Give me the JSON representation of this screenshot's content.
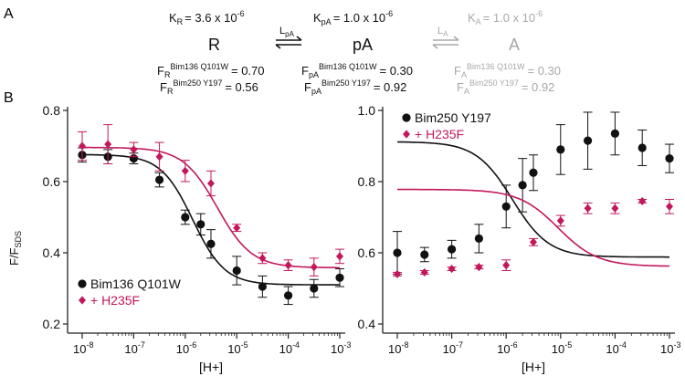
{
  "panel_labels": {
    "a": "A",
    "b": "B"
  },
  "scheme": {
    "states": [
      {
        "name": "R",
        "k_label": "K",
        "k_sub": "R",
        "k_value": "= 3.6 x 10",
        "k_exp": "-6",
        "f_rows": [
          {
            "f": "F",
            "sub": "R",
            "sup": "Bim136 Q101W",
            "value": "= 0.70"
          },
          {
            "f": "F",
            "sub": "R",
            "sup": "Bim250 Y197",
            "value": "= 0.56"
          }
        ]
      },
      {
        "name": "pA",
        "k_label": "K",
        "k_sub": "pA",
        "k_value": "= 1.0 x 10",
        "k_exp": "-6",
        "f_rows": [
          {
            "f": "F",
            "sub": "pA",
            "sup": "Bim136 Q101W",
            "value": "= 0.30"
          },
          {
            "f": "F",
            "sub": "pA",
            "sup": "Bim250 Y197",
            "value": "= 0.92"
          }
        ]
      },
      {
        "name": "A",
        "k_label": "K",
        "k_sub": "A",
        "k_value": "= 1.0 x 10",
        "k_exp": "-6",
        "f_rows": [
          {
            "f": "F",
            "sub": "A",
            "sup": "Bim136 Q101W",
            "value": "= 0.30"
          },
          {
            "f": "F",
            "sub": "A",
            "sup": "Bim250 Y197",
            "value": "= 0.92"
          }
        ]
      }
    ],
    "transitions": [
      {
        "label": "L",
        "sub": "pA"
      },
      {
        "label": "L",
        "sub": "A"
      }
    ],
    "colors": {
      "active": "#111111",
      "faded": "#a8a8a8"
    }
  },
  "colors": {
    "black_series": "#111111",
    "magenta_series": "#c2185b",
    "axis": "#222222"
  },
  "chart_data": [
    {
      "type": "scatter",
      "x_scale": "log",
      "xlim": [
        1e-08,
        0.001
      ],
      "ylim": [
        0.2,
        0.8
      ],
      "xlabel": "[H+]",
      "ylabel": "F/F",
      "ylabel_sub": "SDS",
      "x_ticks": [
        {
          "base": "10",
          "exp": "-8"
        },
        {
          "base": "10",
          "exp": "-7"
        },
        {
          "base": "10",
          "exp": "-6"
        },
        {
          "base": "10",
          "exp": "-5"
        },
        {
          "base": "10",
          "exp": "-4"
        },
        {
          "base": "10",
          "exp": "-3"
        }
      ],
      "y_ticks": [
        "0.2",
        "0.4",
        "0.6",
        "0.8"
      ],
      "legend_position": "bottom-left",
      "series": [
        {
          "name": "Bim136 Q101W",
          "marker": "circle",
          "color": "#111111",
          "x": [
            1e-08,
            3.16e-08,
            1e-07,
            3.16e-07,
            1e-06,
            2e-06,
            3.16e-06,
            1e-05,
            3.16e-05,
            0.0001,
            0.000316,
            0.001
          ],
          "y": [
            0.675,
            0.67,
            0.665,
            0.605,
            0.5,
            0.48,
            0.425,
            0.35,
            0.305,
            0.28,
            0.3,
            0.33
          ],
          "err": [
            0.02,
            0.02,
            0.015,
            0.02,
            0.02,
            0.03,
            0.04,
            0.04,
            0.03,
            0.025,
            0.025,
            0.025
          ],
          "fit": {
            "top": 0.676,
            "bottom": 0.31,
            "ec50": 1.4e-06,
            "hill": 1.4
          }
        },
        {
          "name": "+ H235F",
          "marker": "diamond",
          "color": "#c2185b",
          "x": [
            1e-08,
            3.16e-08,
            1e-07,
            3.16e-07,
            1e-06,
            3.16e-06,
            1e-05,
            3.16e-05,
            0.0001,
            0.000316,
            0.001
          ],
          "y": [
            0.7,
            0.705,
            0.69,
            0.67,
            0.63,
            0.595,
            0.47,
            0.385,
            0.365,
            0.36,
            0.39
          ],
          "err": [
            0.04,
            0.055,
            0.02,
            0.04,
            0.03,
            0.035,
            0.01,
            0.015,
            0.015,
            0.025,
            0.02
          ],
          "fit": {
            "top": 0.696,
            "bottom": 0.358,
            "ec50": 4.2e-06,
            "hill": 1.3
          }
        }
      ]
    },
    {
      "type": "scatter",
      "x_scale": "log",
      "xlim": [
        1e-08,
        0.001
      ],
      "ylim": [
        0.4,
        1.0
      ],
      "xlabel": "[H+]",
      "x_ticks": [
        {
          "base": "10",
          "exp": "-8"
        },
        {
          "base": "10",
          "exp": "-7"
        },
        {
          "base": "10",
          "exp": "-6"
        },
        {
          "base": "10",
          "exp": "-5"
        },
        {
          "base": "10",
          "exp": "-4"
        },
        {
          "base": "10",
          "exp": "-3"
        }
      ],
      "y_ticks": [
        "0.4",
        "0.6",
        "0.8",
        "1.0"
      ],
      "legend_position": "top-left",
      "series": [
        {
          "name": "Bim250 Y197",
          "marker": "circle",
          "color": "#111111",
          "x": [
            1e-08,
            3.16e-08,
            1e-07,
            3.16e-07,
            1e-06,
            2e-06,
            3.16e-06,
            1e-05,
            3.16e-05,
            0.0001,
            0.000316,
            0.001
          ],
          "y": [
            0.6,
            0.595,
            0.61,
            0.64,
            0.73,
            0.79,
            0.825,
            0.89,
            0.915,
            0.935,
            0.895,
            0.865
          ],
          "err": [
            0.06,
            0.02,
            0.025,
            0.04,
            0.06,
            0.075,
            0.05,
            0.07,
            0.08,
            0.06,
            0.05,
            0.04
          ],
          "fit": {
            "top": 0.912,
            "bottom": 0.588,
            "ec50": 1.3e-06,
            "hill": 1.3
          }
        },
        {
          "name": "+ H235F",
          "marker": "diamond",
          "color": "#c2185b",
          "x": [
            1e-08,
            3.16e-08,
            1e-07,
            3.16e-07,
            1e-06,
            3.16e-06,
            1e-05,
            3.16e-05,
            0.0001,
            0.000316,
            0.001
          ],
          "y": [
            0.54,
            0.545,
            0.555,
            0.56,
            0.565,
            0.63,
            0.69,
            0.725,
            0.725,
            0.745,
            0.73
          ],
          "err": [
            0.005,
            0.005,
            0.005,
            0.005,
            0.015,
            0.01,
            0.015,
            0.015,
            0.015,
            0.005,
            0.02
          ],
          "fit": {
            "top": 0.778,
            "bottom": 0.562,
            "ec50": 9e-06,
            "hill": 1.2
          }
        }
      ]
    }
  ]
}
